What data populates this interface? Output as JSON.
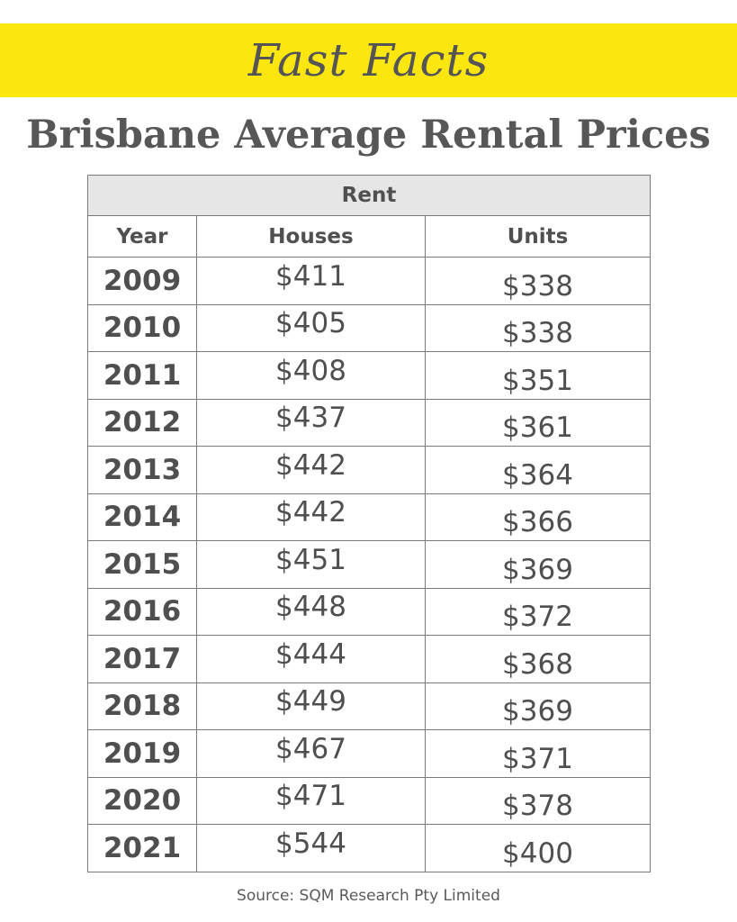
{
  "banner": {
    "text": "Fast Facts",
    "color": "#fce60f"
  },
  "title": "Brisbane Average Rental Prices",
  "source": "Source: SQM Research Pty Limited",
  "chart_data": {
    "type": "table",
    "group_header": "Rent",
    "columns": [
      "Year",
      "Houses",
      "Units"
    ],
    "rows": [
      {
        "year": "2009",
        "houses": "$411",
        "units": "$338"
      },
      {
        "year": "2010",
        "houses": "$405",
        "units": "$338"
      },
      {
        "year": "2011",
        "houses": "$408",
        "units": "$351"
      },
      {
        "year": "2012",
        "houses": "$437",
        "units": "$361"
      },
      {
        "year": "2013",
        "houses": "$442",
        "units": "$364"
      },
      {
        "year": "2014",
        "houses": "$442",
        "units": "$366"
      },
      {
        "year": "2015",
        "houses": "$451",
        "units": "$369"
      },
      {
        "year": "2016",
        "houses": "$448",
        "units": "$372"
      },
      {
        "year": "2017",
        "houses": "$444",
        "units": "$368"
      },
      {
        "year": "2018",
        "houses": "$449",
        "units": "$369"
      },
      {
        "year": "2019",
        "houses": "$467",
        "units": "$371"
      },
      {
        "year": "2020",
        "houses": "$471",
        "units": "$378"
      },
      {
        "year": "2021",
        "houses": "$544",
        "units": "$400"
      }
    ]
  }
}
